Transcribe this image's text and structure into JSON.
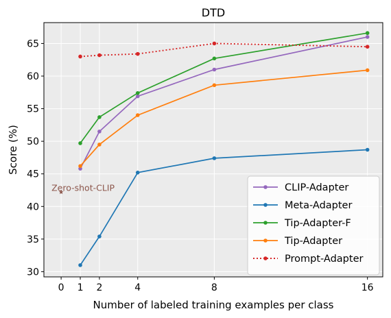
{
  "chart_data": {
    "type": "line",
    "title": "DTD",
    "xlabel": "Number of labeled training examples per class",
    "ylabel": "Score (%)",
    "xlim": [
      -0.9,
      16.8
    ],
    "ylim": [
      29.2,
      68.2
    ],
    "xticks": [
      0,
      1,
      2,
      4,
      8,
      16
    ],
    "yticks": [
      30,
      35,
      40,
      45,
      50,
      55,
      60,
      65
    ],
    "grid": true,
    "legend_position": "lower-right",
    "x": [
      1,
      2,
      4,
      8,
      16
    ],
    "series": [
      {
        "name": "CLIP-Adapter",
        "color": "#9467bd",
        "style": "solid",
        "values": [
          45.8,
          51.5,
          56.9,
          61.0,
          66.0
        ]
      },
      {
        "name": "Meta-Adapter",
        "color": "#1f77b4",
        "style": "solid",
        "values": [
          31.0,
          35.4,
          45.2,
          47.4,
          48.7
        ]
      },
      {
        "name": "Tip-Adapter-F",
        "color": "#2ca02c",
        "style": "solid",
        "values": [
          49.7,
          53.7,
          57.4,
          62.7,
          66.6
        ]
      },
      {
        "name": "Tip-Adapter",
        "color": "#ff7f0e",
        "style": "solid",
        "values": [
          46.2,
          49.5,
          54.0,
          58.6,
          60.9
        ]
      },
      {
        "name": "Prompt-Adapter",
        "color": "#d62728",
        "style": "dotted",
        "values": [
          63.0,
          63.2,
          63.4,
          65.0,
          64.5
        ]
      }
    ],
    "annotations": [
      {
        "text": "Zero-shot-CLIP",
        "x": 0,
        "y": 42.2,
        "color": "#8c564b",
        "marker": "star"
      }
    ]
  }
}
